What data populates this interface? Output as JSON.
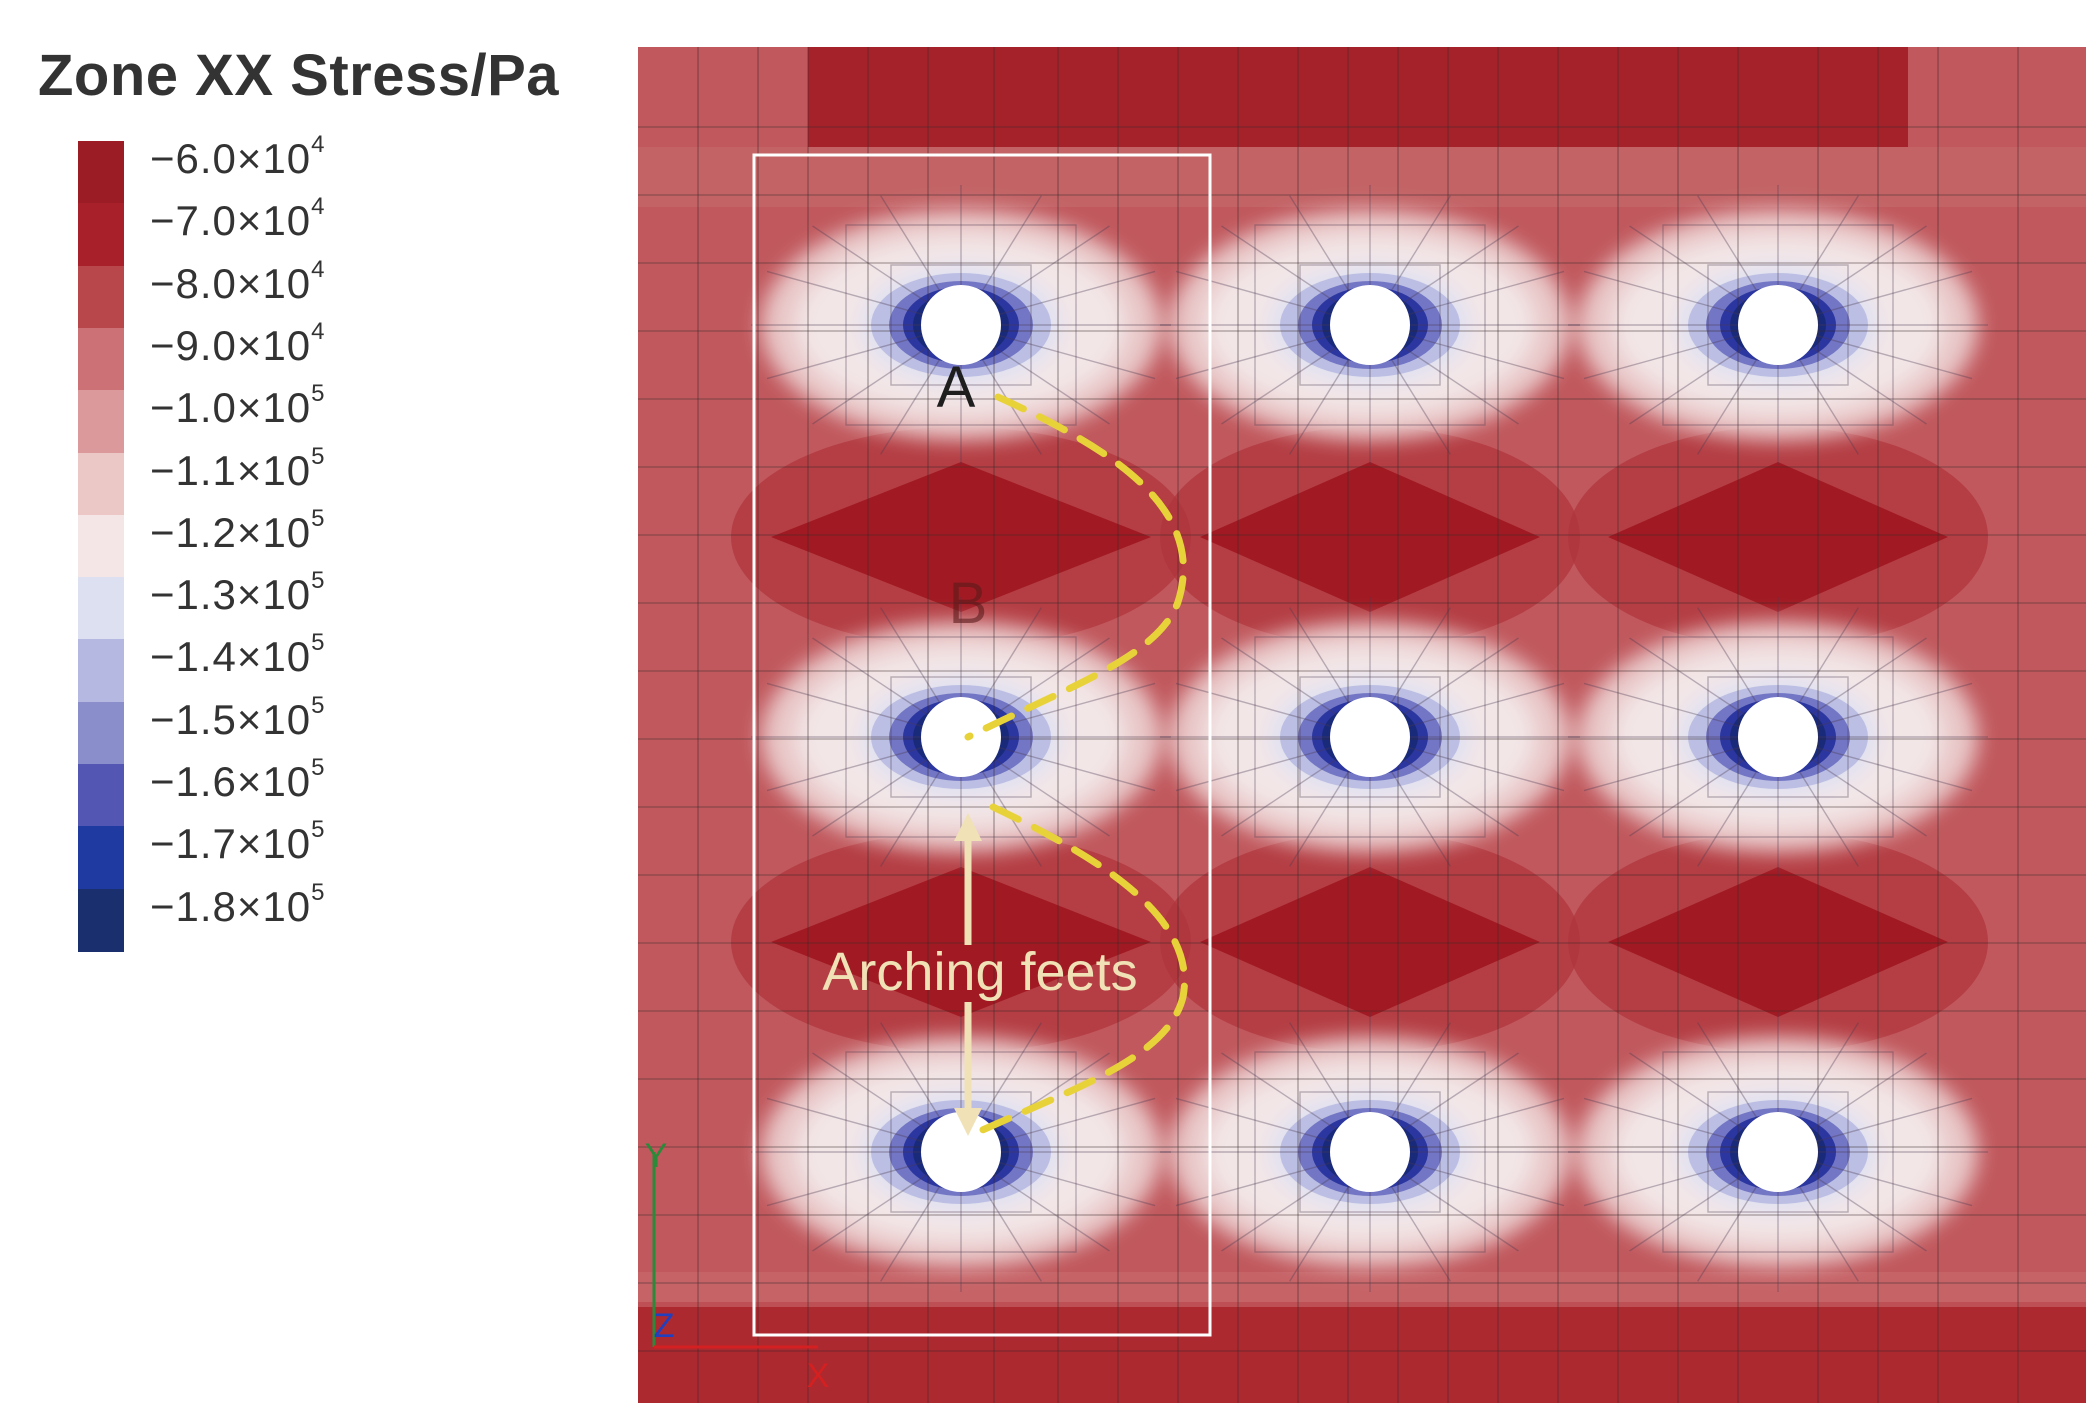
{
  "title": "Zone XX Stress/Pa",
  "legend": {
    "items": [
      {
        "mantissa": "−6.0×10",
        "exp": "4",
        "color": "#9b1c24"
      },
      {
        "mantissa": "−7.0×10",
        "exp": "4",
        "color": "#a8202a"
      },
      {
        "mantissa": "−8.0×10",
        "exp": "4",
        "color": "#b8474c"
      },
      {
        "mantissa": "−9.0×10",
        "exp": "4",
        "color": "#cc7276"
      },
      {
        "mantissa": "−1.0×10",
        "exp": "5",
        "color": "#db999b"
      },
      {
        "mantissa": "−1.1×10",
        "exp": "5",
        "color": "#ebc7c6"
      },
      {
        "mantissa": "−1.2×10",
        "exp": "5",
        "color": "#f4e6e6"
      },
      {
        "mantissa": "−1.3×10",
        "exp": "5",
        "color": "#dde0f1"
      },
      {
        "mantissa": "−1.4×10",
        "exp": "5",
        "color": "#b5b8e0"
      },
      {
        "mantissa": "−1.5×10",
        "exp": "5",
        "color": "#8a8fcc"
      },
      {
        "mantissa": "−1.6×10",
        "exp": "5",
        "color": "#5357b3"
      },
      {
        "mantissa": "−1.7×10",
        "exp": "5",
        "color": "#1f3aa0"
      },
      {
        "mantissa": "−1.8×10",
        "exp": "5",
        "color": "#1a2f6d"
      }
    ]
  },
  "annotations": {
    "point_a": "A",
    "point_b": "B",
    "arching_label": "Arching feets",
    "axis_y": "Y",
    "axis_z": "Z",
    "axis_x": "X"
  },
  "colors": {
    "background_field": "#c0585d",
    "high_compression_core": "#1f2f8e",
    "tension_lobe": "#a61c25",
    "arch_dash": "#e8d23a",
    "arrow": "#f0e2b6",
    "selection_box": "#ffffff"
  },
  "piles": {
    "rows": 3,
    "columns": 3
  }
}
